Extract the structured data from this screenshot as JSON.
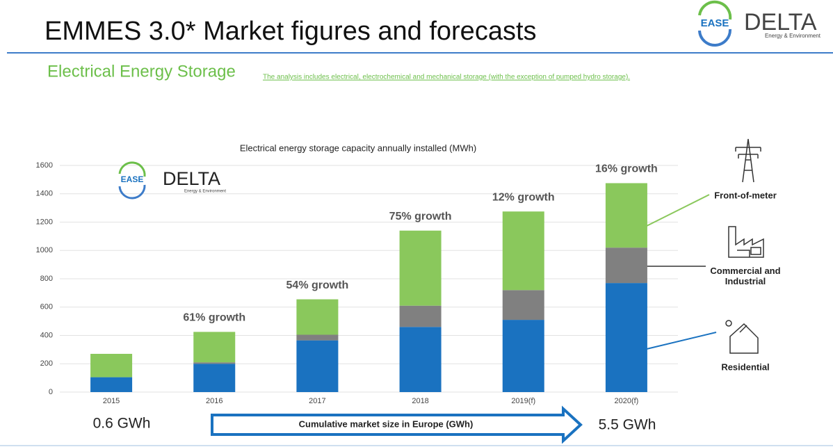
{
  "slide": {
    "title": "EMMES 3.0* Market figures and forecasts",
    "subtitle": "Electrical Energy Storage",
    "note": "The analysis includes electrical, electrochemical and mechanical storage (with the exception of pumped hydro storage).",
    "logo_ease": "EASE",
    "logo_delta": "DELTA",
    "logo_delta_sub": "Energy & Environment",
    "start_size": "0.6 GWh",
    "arrow_label": "Cumulative market size in Europe (GWh)",
    "end_size": "5.5 GWh"
  },
  "chart_data": {
    "type": "stacked_bar",
    "title": "Electrical energy storage capacity annually installed (MWh)",
    "categories": [
      "2015",
      "2016",
      "2017",
      "2018",
      "2019(f)",
      "2020(f)"
    ],
    "series": [
      {
        "name": "Residential",
        "color": "#1a72c0",
        "values": [
          105,
          200,
          365,
          460,
          510,
          770
        ]
      },
      {
        "name": "Commercial and Industrial",
        "color": "#808080",
        "values": [
          0,
          10,
          40,
          150,
          210,
          250
        ]
      },
      {
        "name": "Front-of-meter",
        "color": "#8ac85c",
        "values": [
          165,
          215,
          250,
          530,
          555,
          455
        ]
      }
    ],
    "growth_labels": [
      null,
      "61% growth",
      "54% growth",
      "75% growth",
      "12% growth",
      "16% growth"
    ],
    "ylim": [
      0,
      1600
    ],
    "yticks": [
      0,
      200,
      400,
      600,
      800,
      1000,
      1200,
      1400,
      1600
    ],
    "grid": true
  }
}
